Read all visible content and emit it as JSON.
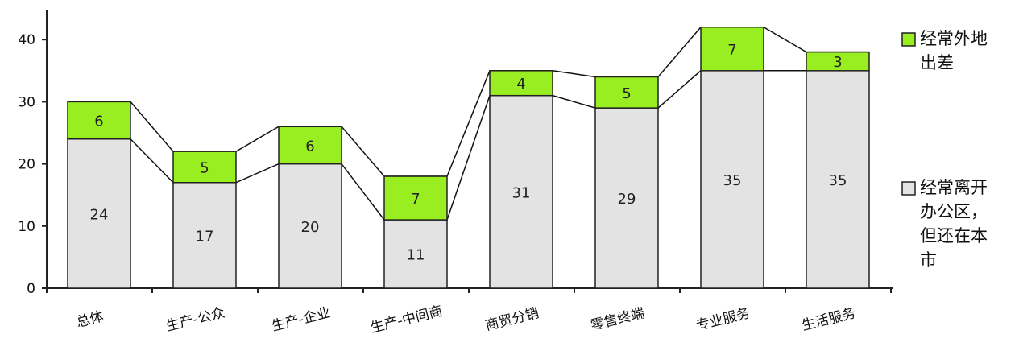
{
  "chart_data": {
    "type": "bar",
    "stacked": true,
    "categories": [
      "总体",
      "生产-公众",
      "生产-企业",
      "生产-中间商",
      "商贸分销",
      "零售终端",
      "专业服务",
      "生活服务"
    ],
    "series": [
      {
        "name": "经常离开办公区，但还在本市",
        "values": [
          24,
          17,
          20,
          11,
          31,
          29,
          35,
          35
        ],
        "color": "#e3e3e3"
      },
      {
        "name": "经常外地出差",
        "values": [
          6,
          5,
          6,
          7,
          4,
          5,
          7,
          3
        ],
        "color": "#99ee22"
      }
    ],
    "yticks": [
      0,
      10,
      20,
      30,
      40
    ],
    "ylim": [
      0,
      45
    ],
    "connector_lines": true,
    "legend_position": "right",
    "legend_lines": [
      [
        "经常外地",
        "出差"
      ],
      [
        "经常离开",
        "办公区，",
        "但还在本",
        "市"
      ]
    ],
    "grid": false
  }
}
